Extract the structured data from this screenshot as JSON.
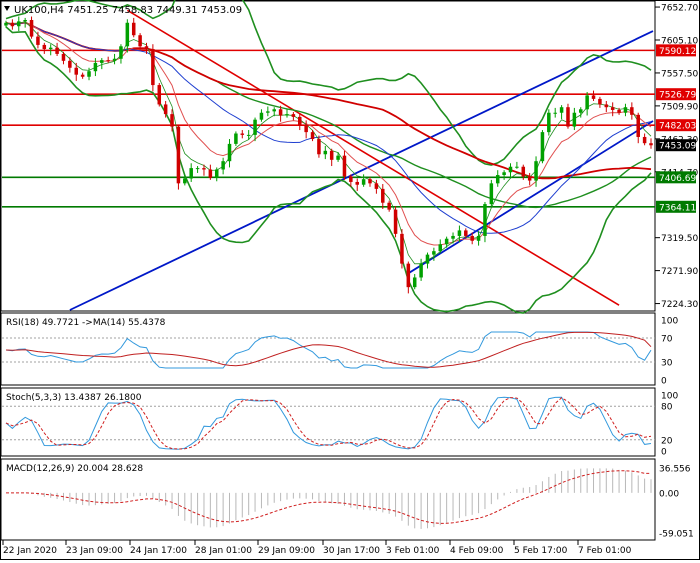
{
  "header": {
    "symbol_line": "UK100,H4  7451.25 7458.83 7449.31 7453.09"
  },
  "colors": {
    "frame": "#000000",
    "bull": "#00a000",
    "bear": "#d00000",
    "trend_blue": "#0018c8",
    "trend_red": "#e00000",
    "level_red": "#e00000",
    "level_green": "#007a00",
    "bollinger": "#1f8f1f",
    "ma_slow": "#d00000",
    "ma_mid": "#1f3fd0",
    "ma_fast": "#e05050",
    "rsi": "#3399dd",
    "rsi_ma": "#c02020",
    "stoch_main": "#3399dd",
    "stoch_signal": "#d02020",
    "macd_hist": "#b8b8b8",
    "macd_signal": "#d02020",
    "grid_dotted": "#a0a0a0"
  },
  "chart_data": [
    {
      "type": "candlestick",
      "name": "main",
      "ylim": [
        7215,
        7660
      ],
      "y_ticks": [
        "7652.70",
        "7605.10",
        "7557.50",
        "7509.90",
        "7462.30",
        "7414.70",
        "7319.50",
        "7271.90",
        "7224.30"
      ],
      "y_tick_values": [
        7652.7,
        7605.1,
        7557.5,
        7509.9,
        7462.3,
        7414.7,
        7319.5,
        7271.9,
        7224.3
      ],
      "x_labels": [
        "22 Jan 2020",
        "23 Jan 09:00",
        "24 Jan 17:00",
        "28 Jan 01:00",
        "29 Jan 09:00",
        "30 Jan 17:00",
        "3 Feb 01:00",
        "4 Feb 09:00",
        "5 Feb 17:00",
        "7 Feb 01:00"
      ],
      "close_series": [
        7630,
        7625,
        7632,
        7634,
        7610,
        7598,
        7592,
        7594,
        7585,
        7575,
        7565,
        7555,
        7552,
        7560,
        7572,
        7576,
        7575,
        7578,
        7596,
        7630,
        7612,
        7596,
        7592,
        7540,
        7512,
        7498,
        7480,
        7398,
        7405,
        7420,
        7420,
        7418,
        7406,
        7418,
        7430,
        7455,
        7470,
        7468,
        7468,
        7490,
        7500,
        7502,
        7505,
        7496,
        7498,
        7494,
        7482,
        7472,
        7462,
        7440,
        7445,
        7432,
        7438,
        7408,
        7400,
        7396,
        7404,
        7398,
        7390,
        7370,
        7360,
        7325,
        7282,
        7248,
        7262,
        7282,
        7295,
        7300,
        7310,
        7318,
        7322,
        7330,
        7322,
        7315,
        7322,
        7368,
        7398,
        7410,
        7414,
        7422,
        7422,
        7408,
        7402,
        7430,
        7472,
        7500,
        7500,
        7508,
        7480,
        7500,
        7505,
        7525,
        7520,
        7512,
        7508,
        7504,
        7500,
        7508,
        7497,
        7465,
        7456,
        7453
      ],
      "levels": [
        {
          "label": "7590.12",
          "value": 7590.12,
          "color": "level_red"
        },
        {
          "label": "7526.79",
          "value": 7526.79,
          "color": "level_red"
        },
        {
          "label": "7482.03",
          "value": 7482.03,
          "color": "level_red"
        },
        {
          "label": "7406.69",
          "value": 7406.69,
          "color": "level_green"
        },
        {
          "label": "7364.11",
          "value": 7364.11,
          "color": "level_green"
        }
      ],
      "current_price": {
        "label": "7453.09",
        "value": 7453.09
      }
    },
    {
      "type": "line",
      "name": "rsi",
      "title": "RSI(18) 49.7721  ->MA(14) 55.4378",
      "ylim": [
        0,
        100
      ],
      "y_ticks": [
        "100",
        "70",
        "30",
        "0"
      ],
      "y_tick_values": [
        100,
        70,
        30,
        0
      ],
      "series": [
        {
          "name": "RSI(18)",
          "last": 49.7721
        },
        {
          "name": "MA(14)",
          "last": 55.4378
        }
      ]
    },
    {
      "type": "line",
      "name": "stochastic",
      "title": "Stoch(5,3,3) 13.4387 26.1800",
      "ylim": [
        0,
        100
      ],
      "y_ticks": [
        "100",
        "80",
        "20",
        "0"
      ],
      "y_tick_values": [
        100,
        80,
        20,
        0
      ],
      "series": [
        {
          "name": "%K",
          "last": 13.4387
        },
        {
          "name": "%D",
          "last": 26.18
        }
      ]
    },
    {
      "type": "bar",
      "name": "macd",
      "title": "MACD(12,26,9) 20.004 28.628",
      "ylim": [
        -59.051,
        36.556
      ],
      "y_ticks": [
        "36.556",
        "0.00",
        "-59.051"
      ],
      "y_tick_values": [
        36.556,
        0,
        -59.051
      ],
      "series": [
        {
          "name": "MACD",
          "last": 20.004
        },
        {
          "name": "Signal",
          "last": 28.628
        }
      ]
    }
  ]
}
